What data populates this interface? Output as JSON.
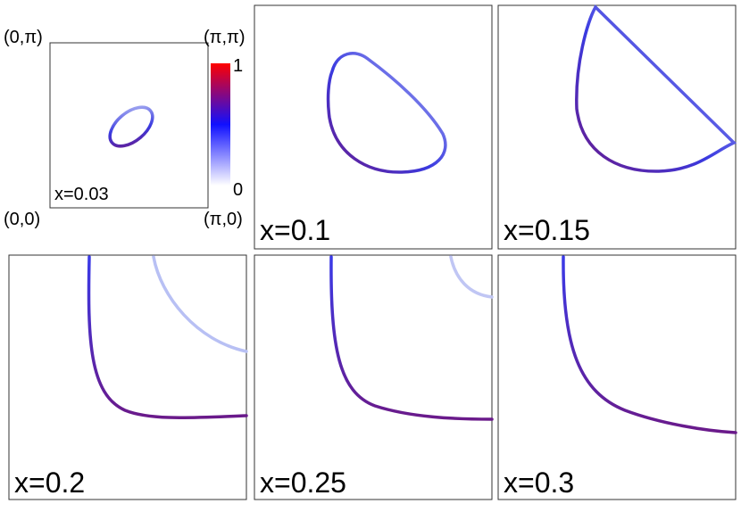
{
  "corners": {
    "top_left": "(0,π)",
    "top_right": "(π,π)",
    "bottom_left": "(0,0)",
    "bottom_right": "(π,0)"
  },
  "colorbar": {
    "max": "1",
    "min": "0"
  },
  "panels": [
    {
      "label": "x=0.03"
    },
    {
      "label": "x=0.1"
    },
    {
      "label": "x=0.15"
    },
    {
      "label": "x=0.2"
    },
    {
      "label": "x=0.25"
    },
    {
      "label": "x=0.3"
    }
  ]
}
